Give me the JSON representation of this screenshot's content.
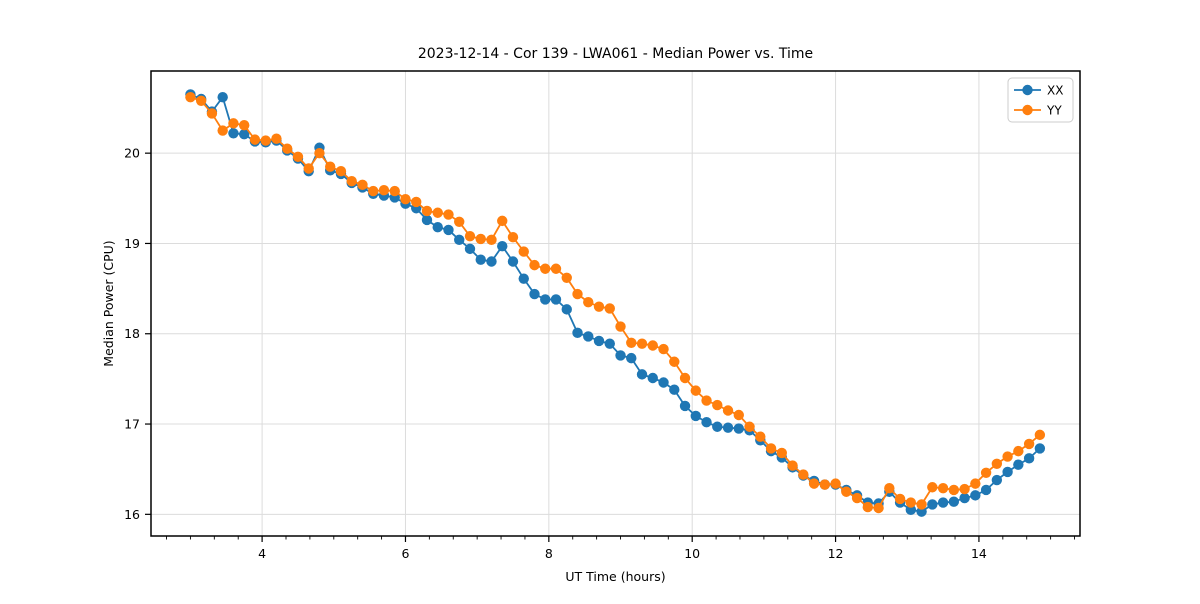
{
  "chart_data": {
    "type": "line",
    "title": "2023-12-14 - Cor 139 - LWA061 - Median Power vs. Time",
    "xlabel": "UT Time (hours)",
    "ylabel": "Median Power (CPU)",
    "xlim": [
      2.45,
      15.41
    ],
    "ylim": [
      15.76,
      20.91
    ],
    "xticks": [
      4,
      6,
      8,
      10,
      12,
      14
    ],
    "yticks": [
      16,
      17,
      18,
      19,
      20
    ],
    "x_minor_step": 0.3333333,
    "grid": true,
    "legend_position": "top-right",
    "x": [
      3.0,
      3.15,
      3.3,
      3.45,
      3.6,
      3.75,
      3.9,
      4.05,
      4.2,
      4.35,
      4.5,
      4.65,
      4.8,
      4.95,
      5.1,
      5.25,
      5.4,
      5.55,
      5.7,
      5.85,
      6.0,
      6.15,
      6.3,
      6.45,
      6.6,
      6.75,
      6.9,
      7.05,
      7.2,
      7.35,
      7.5,
      7.65,
      7.8,
      7.95,
      8.1,
      8.25,
      8.4,
      8.55,
      8.7,
      8.85,
      9.0,
      9.15,
      9.3,
      9.45,
      9.6,
      9.75,
      9.9,
      10.05,
      10.2,
      10.35,
      10.5,
      10.65,
      10.8,
      10.95,
      11.1,
      11.25,
      11.4,
      11.55,
      11.7,
      11.85,
      12.0,
      12.15,
      12.3,
      12.45,
      12.6,
      12.75,
      12.9,
      13.05,
      13.2,
      13.35,
      13.5,
      13.65,
      13.8,
      13.95,
      14.1,
      14.25,
      14.4,
      14.55,
      14.7,
      14.85
    ],
    "series": [
      {
        "name": "XX",
        "color": "#1f77b4",
        "values": [
          20.65,
          20.6,
          20.46,
          20.62,
          20.22,
          20.21,
          20.13,
          20.12,
          20.14,
          20.03,
          19.94,
          19.8,
          20.06,
          19.81,
          19.77,
          19.67,
          19.62,
          19.55,
          19.53,
          19.51,
          19.44,
          19.39,
          19.26,
          19.18,
          19.15,
          19.04,
          18.94,
          18.82,
          18.8,
          18.97,
          18.8,
          18.61,
          18.44,
          18.38,
          18.38,
          18.27,
          18.01,
          17.97,
          17.92,
          17.89,
          17.76,
          17.73,
          17.55,
          17.51,
          17.46,
          17.38,
          17.2,
          17.09,
          17.02,
          16.97,
          16.96,
          16.95,
          16.93,
          16.82,
          16.7,
          16.63,
          16.52,
          16.43,
          16.37,
          16.33,
          16.33,
          16.27,
          16.21,
          16.13,
          16.12,
          16.25,
          16.13,
          16.05,
          16.03,
          16.11,
          16.13,
          16.14,
          16.18,
          16.21,
          16.27,
          16.38,
          16.47,
          16.55,
          16.62,
          16.73
        ]
      },
      {
        "name": "YY",
        "color": "#ff7f0e",
        "values": [
          20.62,
          20.58,
          20.44,
          20.25,
          20.33,
          20.31,
          20.15,
          20.14,
          20.16,
          20.05,
          19.96,
          19.83,
          20.0,
          19.85,
          19.8,
          19.69,
          19.65,
          19.58,
          19.59,
          19.58,
          19.49,
          19.46,
          19.36,
          19.34,
          19.32,
          19.24,
          19.08,
          19.05,
          19.04,
          19.25,
          19.07,
          18.91,
          18.76,
          18.72,
          18.72,
          18.62,
          18.44,
          18.35,
          18.3,
          18.28,
          18.08,
          17.9,
          17.89,
          17.87,
          17.83,
          17.69,
          17.51,
          17.37,
          17.26,
          17.21,
          17.15,
          17.1,
          16.97,
          16.86,
          16.73,
          16.68,
          16.54,
          16.44,
          16.34,
          16.33,
          16.34,
          16.25,
          16.18,
          16.08,
          16.07,
          16.29,
          16.17,
          16.13,
          16.11,
          16.3,
          16.29,
          16.27,
          16.28,
          16.34,
          16.46,
          16.56,
          16.64,
          16.7,
          16.78,
          16.88
        ]
      }
    ],
    "legend": [
      "XX",
      "YY"
    ],
    "colors": {
      "grid": "#dcdcdc",
      "spine": "#000000",
      "background": "#ffffff"
    }
  }
}
